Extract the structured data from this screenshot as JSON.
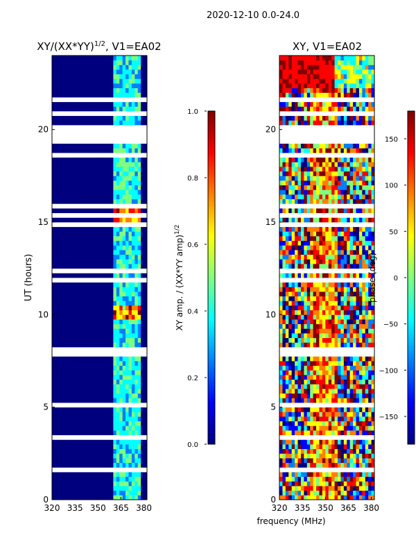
{
  "figure_title": "2020-12-10 0.0-24.0",
  "colors": {
    "jet": [
      "#00007f",
      "#0000ff",
      "#007fff",
      "#00ffff",
      "#7fff7f",
      "#ffff00",
      "#ff7f00",
      "#ff0000",
      "#7f0000"
    ],
    "blank": "#ffffff",
    "axis": "#000000"
  },
  "chart_data": [
    {
      "type": "heatmap",
      "panel": "left",
      "title_main": "XY/(XX*YY)",
      "title_sup": "1/2",
      "title_rest": ", V1=EA02",
      "xlabel": "",
      "ylabel": "UT (hours)",
      "xlim": [
        320,
        382
      ],
      "ylim": [
        0,
        24
      ],
      "x_ticks": [
        320,
        335,
        350,
        365,
        380
      ],
      "y_ticks": [
        0,
        5,
        10,
        15,
        20
      ],
      "colorbar": {
        "label_main": "XY amp. / (XX*YY amp)",
        "label_sup": "1/2",
        "range": [
          0.0,
          1.0
        ],
        "ticks": [
          "0.0",
          "0.2",
          "0.4",
          "0.6",
          "0.8",
          "1.0"
        ]
      },
      "notes": "Amplitude mostly near 0 (dark blue) below 359 MHz; elevated 0.3-0.6 in channels 359-378 MHz; peaks near 0.9 around 15 h and 10 h."
    },
    {
      "type": "heatmap",
      "panel": "right",
      "title_main": "XY, V1=EA02",
      "xlabel": "frequency (MHz)",
      "ylabel": "",
      "xlim": [
        320,
        382
      ],
      "ylim": [
        0,
        24
      ],
      "x_ticks": [
        320,
        335,
        350,
        365,
        380
      ],
      "y_ticks": [
        0,
        5,
        10,
        15,
        20
      ],
      "colorbar": {
        "label_main": "phase (deg)",
        "range": [
          -180,
          180
        ],
        "ticks": [
          "−150",
          "−100",
          "−50",
          "0",
          "50",
          "100",
          "150"
        ]
      },
      "notes": "Phase in degrees; near +150 (red) at 22-24 h for 320-357 MHz, noisy elsewhere."
    }
  ]
}
